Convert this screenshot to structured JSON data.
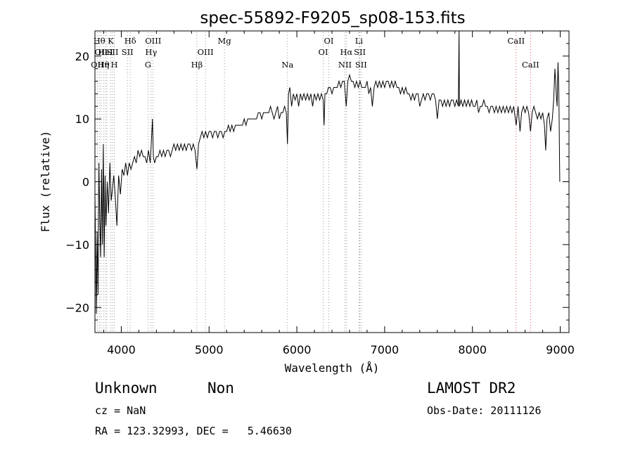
{
  "chart_data": {
    "type": "line",
    "title": "spec-55892-F9205_sp08-153.fits",
    "xlabel": "Wavelength (Å)",
    "ylabel": "Flux (relative)",
    "xlim": [
      3700,
      9100
    ],
    "ylim": [
      -24,
      24
    ],
    "xticks": [
      4000,
      5000,
      6000,
      7000,
      8000,
      9000
    ],
    "yticks": [
      -20,
      -10,
      0,
      10,
      20
    ],
    "grid": false,
    "series": [
      {
        "points": [
          [
            3700,
            -2
          ],
          [
            3715,
            -21
          ],
          [
            3725,
            -8
          ],
          [
            3735,
            -18
          ],
          [
            3745,
            3
          ],
          [
            3755,
            -6
          ],
          [
            3765,
            -12
          ],
          [
            3775,
            2
          ],
          [
            3785,
            -10
          ],
          [
            3795,
            6
          ],
          [
            3805,
            -12
          ],
          [
            3815,
            1
          ],
          [
            3825,
            -7
          ],
          [
            3840,
            0
          ],
          [
            3855,
            -5
          ],
          [
            3870,
            3
          ],
          [
            3885,
            -3
          ],
          [
            3900,
            -1
          ],
          [
            3915,
            1
          ],
          [
            3930,
            -2
          ],
          [
            3950,
            -7
          ],
          [
            3970,
            1
          ],
          [
            3990,
            -2
          ],
          [
            4010,
            2
          ],
          [
            4030,
            1
          ],
          [
            4050,
            3
          ],
          [
            4070,
            1
          ],
          [
            4090,
            3
          ],
          [
            4110,
            2
          ],
          [
            4130,
            3
          ],
          [
            4150,
            4
          ],
          [
            4170,
            3
          ],
          [
            4190,
            5
          ],
          [
            4210,
            4
          ],
          [
            4230,
            5
          ],
          [
            4250,
            4
          ],
          [
            4270,
            4
          ],
          [
            4290,
            3
          ],
          [
            4310,
            5
          ],
          [
            4330,
            3
          ],
          [
            4345,
            7
          ],
          [
            4355,
            10
          ],
          [
            4365,
            4
          ],
          [
            4380,
            3
          ],
          [
            4400,
            4
          ],
          [
            4420,
            4
          ],
          [
            4440,
            5
          ],
          [
            4460,
            4
          ],
          [
            4480,
            5
          ],
          [
            4500,
            4
          ],
          [
            4520,
            5
          ],
          [
            4540,
            5
          ],
          [
            4560,
            4
          ],
          [
            4580,
            5
          ],
          [
            4600,
            6
          ],
          [
            4620,
            5
          ],
          [
            4640,
            6
          ],
          [
            4660,
            5
          ],
          [
            4680,
            6
          ],
          [
            4700,
            5
          ],
          [
            4720,
            6
          ],
          [
            4740,
            5
          ],
          [
            4760,
            6
          ],
          [
            4780,
            6
          ],
          [
            4800,
            5
          ],
          [
            4820,
            6
          ],
          [
            4840,
            5
          ],
          [
            4862,
            2
          ],
          [
            4880,
            6
          ],
          [
            4900,
            7
          ],
          [
            4920,
            8
          ],
          [
            4940,
            7
          ],
          [
            4960,
            8
          ],
          [
            4980,
            7
          ],
          [
            5000,
            8
          ],
          [
            5020,
            8
          ],
          [
            5040,
            7
          ],
          [
            5060,
            8
          ],
          [
            5080,
            8
          ],
          [
            5100,
            7
          ],
          [
            5120,
            8
          ],
          [
            5140,
            8
          ],
          [
            5160,
            7
          ],
          [
            5180,
            8
          ],
          [
            5200,
            8
          ],
          [
            5220,
            9
          ],
          [
            5240,
            8
          ],
          [
            5260,
            9
          ],
          [
            5280,
            8
          ],
          [
            5300,
            9
          ],
          [
            5320,
            9
          ],
          [
            5340,
            9
          ],
          [
            5360,
            9
          ],
          [
            5380,
            9
          ],
          [
            5400,
            10
          ],
          [
            5420,
            9
          ],
          [
            5440,
            10
          ],
          [
            5460,
            10
          ],
          [
            5480,
            10
          ],
          [
            5500,
            10
          ],
          [
            5520,
            10
          ],
          [
            5540,
            10
          ],
          [
            5560,
            11
          ],
          [
            5580,
            11
          ],
          [
            5600,
            10
          ],
          [
            5620,
            11
          ],
          [
            5640,
            11
          ],
          [
            5660,
            11
          ],
          [
            5680,
            11
          ],
          [
            5700,
            12
          ],
          [
            5720,
            11
          ],
          [
            5740,
            10
          ],
          [
            5760,
            11
          ],
          [
            5780,
            12
          ],
          [
            5800,
            10
          ],
          [
            5820,
            11
          ],
          [
            5840,
            11
          ],
          [
            5860,
            12
          ],
          [
            5880,
            11
          ],
          [
            5893,
            6
          ],
          [
            5905,
            14
          ],
          [
            5920,
            15
          ],
          [
            5940,
            12
          ],
          [
            5960,
            14
          ],
          [
            5980,
            13
          ],
          [
            6000,
            14
          ],
          [
            6020,
            12
          ],
          [
            6040,
            14
          ],
          [
            6060,
            13
          ],
          [
            6080,
            14
          ],
          [
            6100,
            13
          ],
          [
            6120,
            14
          ],
          [
            6140,
            13
          ],
          [
            6160,
            14
          ],
          [
            6180,
            12
          ],
          [
            6200,
            14
          ],
          [
            6220,
            13
          ],
          [
            6240,
            14
          ],
          [
            6260,
            13
          ],
          [
            6280,
            14
          ],
          [
            6300,
            13
          ],
          [
            6310,
            9
          ],
          [
            6320,
            14
          ],
          [
            6340,
            14
          ],
          [
            6360,
            15
          ],
          [
            6380,
            15
          ],
          [
            6400,
            14
          ],
          [
            6420,
            15
          ],
          [
            6440,
            15
          ],
          [
            6460,
            15
          ],
          [
            6480,
            16
          ],
          [
            6500,
            15
          ],
          [
            6520,
            16
          ],
          [
            6540,
            16
          ],
          [
            6563,
            12
          ],
          [
            6580,
            16
          ],
          [
            6600,
            17
          ],
          [
            6620,
            16
          ],
          [
            6640,
            16
          ],
          [
            6660,
            15
          ],
          [
            6680,
            16
          ],
          [
            6700,
            15
          ],
          [
            6720,
            16
          ],
          [
            6740,
            15
          ],
          [
            6760,
            15
          ],
          [
            6780,
            15
          ],
          [
            6800,
            16
          ],
          [
            6820,
            14
          ],
          [
            6840,
            15
          ],
          [
            6860,
            12
          ],
          [
            6880,
            15
          ],
          [
            6900,
            16
          ],
          [
            6920,
            15
          ],
          [
            6940,
            16
          ],
          [
            6960,
            15
          ],
          [
            6980,
            16
          ],
          [
            7000,
            15
          ],
          [
            7020,
            16
          ],
          [
            7040,
            16
          ],
          [
            7060,
            15
          ],
          [
            7080,
            16
          ],
          [
            7100,
            15
          ],
          [
            7120,
            16
          ],
          [
            7140,
            15
          ],
          [
            7160,
            15
          ],
          [
            7180,
            14
          ],
          [
            7200,
            15
          ],
          [
            7220,
            14
          ],
          [
            7240,
            15
          ],
          [
            7260,
            14
          ],
          [
            7280,
            14
          ],
          [
            7300,
            13
          ],
          [
            7320,
            14
          ],
          [
            7340,
            13
          ],
          [
            7360,
            14
          ],
          [
            7380,
            14
          ],
          [
            7400,
            12
          ],
          [
            7420,
            13
          ],
          [
            7440,
            14
          ],
          [
            7460,
            13
          ],
          [
            7480,
            14
          ],
          [
            7500,
            14
          ],
          [
            7520,
            13
          ],
          [
            7540,
            14
          ],
          [
            7560,
            14
          ],
          [
            7580,
            13
          ],
          [
            7600,
            10
          ],
          [
            7620,
            13
          ],
          [
            7640,
            13
          ],
          [
            7660,
            12
          ],
          [
            7680,
            13
          ],
          [
            7700,
            12
          ],
          [
            7720,
            13
          ],
          [
            7740,
            12
          ],
          [
            7760,
            13
          ],
          [
            7780,
            13
          ],
          [
            7800,
            12
          ],
          [
            7820,
            13
          ],
          [
            7840,
            12
          ],
          [
            7848,
            24
          ],
          [
            7852,
            12
          ],
          [
            7870,
            13
          ],
          [
            7890,
            12
          ],
          [
            7910,
            13
          ],
          [
            7930,
            12
          ],
          [
            7950,
            13
          ],
          [
            7970,
            12
          ],
          [
            7990,
            13
          ],
          [
            8010,
            12
          ],
          [
            8030,
            12
          ],
          [
            8050,
            13
          ],
          [
            8070,
            11
          ],
          [
            8090,
            12
          ],
          [
            8110,
            12
          ],
          [
            8130,
            13
          ],
          [
            8150,
            12
          ],
          [
            8170,
            12
          ],
          [
            8190,
            11
          ],
          [
            8210,
            12
          ],
          [
            8230,
            12
          ],
          [
            8250,
            11
          ],
          [
            8270,
            12
          ],
          [
            8290,
            11
          ],
          [
            8310,
            12
          ],
          [
            8330,
            11
          ],
          [
            8350,
            12
          ],
          [
            8370,
            11
          ],
          [
            8390,
            12
          ],
          [
            8410,
            11
          ],
          [
            8430,
            12
          ],
          [
            8450,
            11
          ],
          [
            8470,
            12
          ],
          [
            8498,
            9
          ],
          [
            8520,
            12
          ],
          [
            8542,
            8
          ],
          [
            8560,
            11
          ],
          [
            8580,
            12
          ],
          [
            8600,
            11
          ],
          [
            8620,
            12
          ],
          [
            8640,
            11
          ],
          [
            8662,
            8
          ],
          [
            8680,
            11
          ],
          [
            8700,
            12
          ],
          [
            8720,
            11
          ],
          [
            8740,
            10
          ],
          [
            8760,
            11
          ],
          [
            8780,
            10
          ],
          [
            8800,
            11
          ],
          [
            8820,
            9
          ],
          [
            8835,
            5
          ],
          [
            8850,
            10
          ],
          [
            8870,
            11
          ],
          [
            8890,
            8
          ],
          [
            8910,
            10
          ],
          [
            8925,
            13
          ],
          [
            8940,
            18
          ],
          [
            8955,
            14
          ],
          [
            8965,
            12
          ],
          [
            8975,
            19
          ],
          [
            8985,
            14
          ],
          [
            8995,
            0
          ]
        ]
      }
    ],
    "lines": [
      {
        "w": 3727,
        "label": "OII",
        "row": 2
      },
      {
        "w": 3750,
        "label": "Hθ",
        "row": 0
      },
      {
        "w": 3770,
        "label": "OII",
        "row": 1
      },
      {
        "w": 3798,
        "label": "Hθ",
        "row": 2
      },
      {
        "w": 3820,
        "label": "HeI",
        "row": 1
      },
      {
        "w": 3835,
        "label": "η",
        "row": 2
      },
      {
        "w": 3880,
        "label": "K",
        "row": 0
      },
      {
        "w": 3900,
        "label": "SII",
        "row": 1
      },
      {
        "w": 3920,
        "label": "H",
        "row": 2
      },
      {
        "w": 4070,
        "label": "SII",
        "row": 1
      },
      {
        "w": 4102,
        "label": "Hδ",
        "row": 0
      },
      {
        "w": 4304,
        "label": "G",
        "row": 2
      },
      {
        "w": 4340,
        "label": "Hγ",
        "row": 1
      },
      {
        "w": 4363,
        "label": "OIII",
        "row": 0
      },
      {
        "w": 4861,
        "label": "Hβ",
        "row": 2
      },
      {
        "w": 4959,
        "label": "OIII",
        "row": 1
      },
      {
        "w": 5175,
        "label": "Mg",
        "row": 0
      },
      {
        "w": 5893,
        "label": "Na",
        "row": 2
      },
      {
        "w": 6300,
        "label": "OI",
        "row": 1
      },
      {
        "w": 6364,
        "label": "OI",
        "row": 0
      },
      {
        "w": 6548,
        "label": "NII",
        "row": 2
      },
      {
        "w": 6563,
        "label": "Hα",
        "row": 1
      },
      {
        "w": 6708,
        "label": "Li",
        "row": 0
      },
      {
        "w": 6717,
        "label": "SII",
        "row": 1
      },
      {
        "w": 6731,
        "label": "SII",
        "row": 2
      },
      {
        "w": 8498,
        "label": "CaII",
        "row": 0
      },
      {
        "w": 8662,
        "label": "CaII",
        "row": 2
      }
    ]
  },
  "info": {
    "class_label": "Unknown",
    "subclass_label": "Non",
    "survey": "LAMOST DR2",
    "cz": "cz = NaN",
    "obs_date": "Obs-Date: 20111126",
    "coords": "RA = 123.32993, DEC =   5.46630"
  },
  "colors": {
    "spectrum": "#000000",
    "line_marker": "#d62728",
    "line_marker_alt": "#808080"
  }
}
